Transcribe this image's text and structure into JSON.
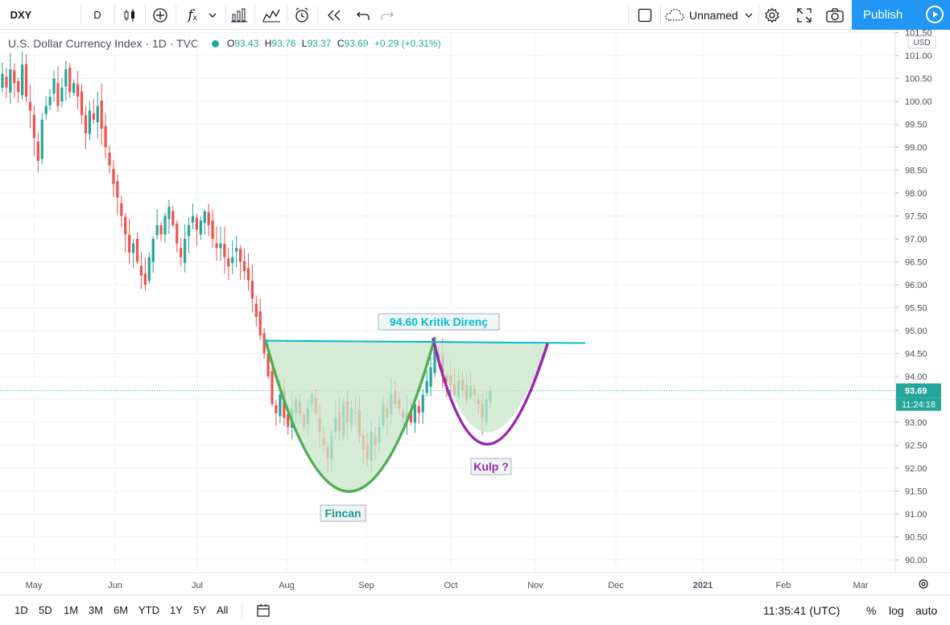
{
  "toolbar": {
    "symbol": "DXY",
    "interval": "D",
    "layout_name": "Unnamed",
    "publish_label": "Publish",
    "icons": [
      "candles-icon",
      "add-compare-icon",
      "indicators-icon",
      "templates-icon",
      "alert-icon",
      "replay-icon",
      "undo-icon",
      "redo-icon",
      "fullscreen-rect-icon",
      "cloud-icon",
      "settings-icon",
      "fullscreen-icon",
      "camera-icon",
      "play-icon"
    ]
  },
  "legend": {
    "title": "U.S. Dollar Currency Index · 1D · TVC",
    "o_label": "O",
    "o": "93.43",
    "h_label": "H",
    "h": "93.76",
    "l_label": "L",
    "l": "93.37",
    "c_label": "C",
    "c": "93.69",
    "change": "+0.29 (+0.31%)"
  },
  "bottombar": {
    "ranges": [
      "1D",
      "5D",
      "1M",
      "3M",
      "6M",
      "YTD",
      "1Y",
      "5Y",
      "All"
    ],
    "time": "11:35:41 (UTC)",
    "percent": "%",
    "log": "log",
    "auto": "auto"
  },
  "chart_data": {
    "type": "candlestick",
    "currency_label": "USD",
    "y_ticks": [
      "101.50",
      "101.00",
      "100.50",
      "100.00",
      "99.50",
      "99.00",
      "98.50",
      "98.00",
      "97.50",
      "97.00",
      "96.50",
      "96.00",
      "95.50",
      "95.00",
      "94.50",
      "94.00",
      "93.50",
      "93.00",
      "92.50",
      "92.00",
      "91.50",
      "91.00",
      "90.50",
      "90.00"
    ],
    "ylim": [
      89.8,
      101.6
    ],
    "x_ticks": [
      "May",
      "Jun",
      "Jul",
      "Aug",
      "Sep",
      "Oct",
      "Nov",
      "Dec",
      "2021",
      "Feb",
      "Mar"
    ],
    "last_price": "93.69",
    "countdown": "11:24:18",
    "colors": {
      "up": "#26a69a",
      "down": "#ef5350",
      "cup": "#4caf50",
      "handle": "#9c27b0",
      "resistance": "#00bcd4",
      "fill": "#c8e6c9"
    },
    "closes": [
      100.6,
      100.3,
      100.7,
      100.4,
      100.2,
      100.8,
      100.1,
      99.8,
      99.2,
      98.7,
      99.6,
      99.9,
      100.1,
      100.5,
      99.9,
      100.3,
      100.7,
      100.2,
      100.4,
      100.1,
      99.7,
      99.3,
      99.8,
      99.6,
      99.9,
      99.4,
      99.0,
      98.6,
      98.2,
      97.9,
      97.5,
      97.1,
      96.7,
      96.9,
      96.5,
      96.2,
      96.0,
      96.6,
      97.0,
      97.3,
      97.1,
      97.5,
      97.7,
      97.3,
      96.9,
      96.6,
      97.0,
      97.3,
      97.5,
      97.2,
      97.4,
      97.6,
      97.3,
      97.0,
      96.8,
      96.9,
      96.6,
      96.4,
      96.6,
      96.8,
      96.5,
      96.3,
      96.1,
      95.7,
      95.3,
      94.9,
      94.5,
      94.0,
      93.4,
      93.2,
      93.6,
      93.1,
      92.9,
      93.3,
      93.5,
      93.2,
      92.9,
      93.3,
      93.6,
      93.2,
      92.8,
      92.5,
      92.2,
      92.7,
      93.1,
      92.8,
      93.4,
      93.0,
      93.3,
      93.2,
      92.7,
      92.4,
      92.2,
      92.8,
      92.5,
      92.9,
      93.4,
      93.1,
      93.6,
      93.4,
      93.3,
      93.1,
      93.2,
      93.0,
      93.4,
      93.2,
      93.6,
      93.9,
      94.2,
      94.6,
      94.4,
      94.1,
      93.9,
      93.8,
      93.6,
      93.9,
      93.7,
      93.5,
      93.8,
      93.6,
      93.4,
      93.1,
      93.5,
      93.69
    ],
    "cup_label": "Fincan",
    "handle_label": "Kulp ?",
    "resistance_label": "94.60 Kritik Direnç"
  }
}
